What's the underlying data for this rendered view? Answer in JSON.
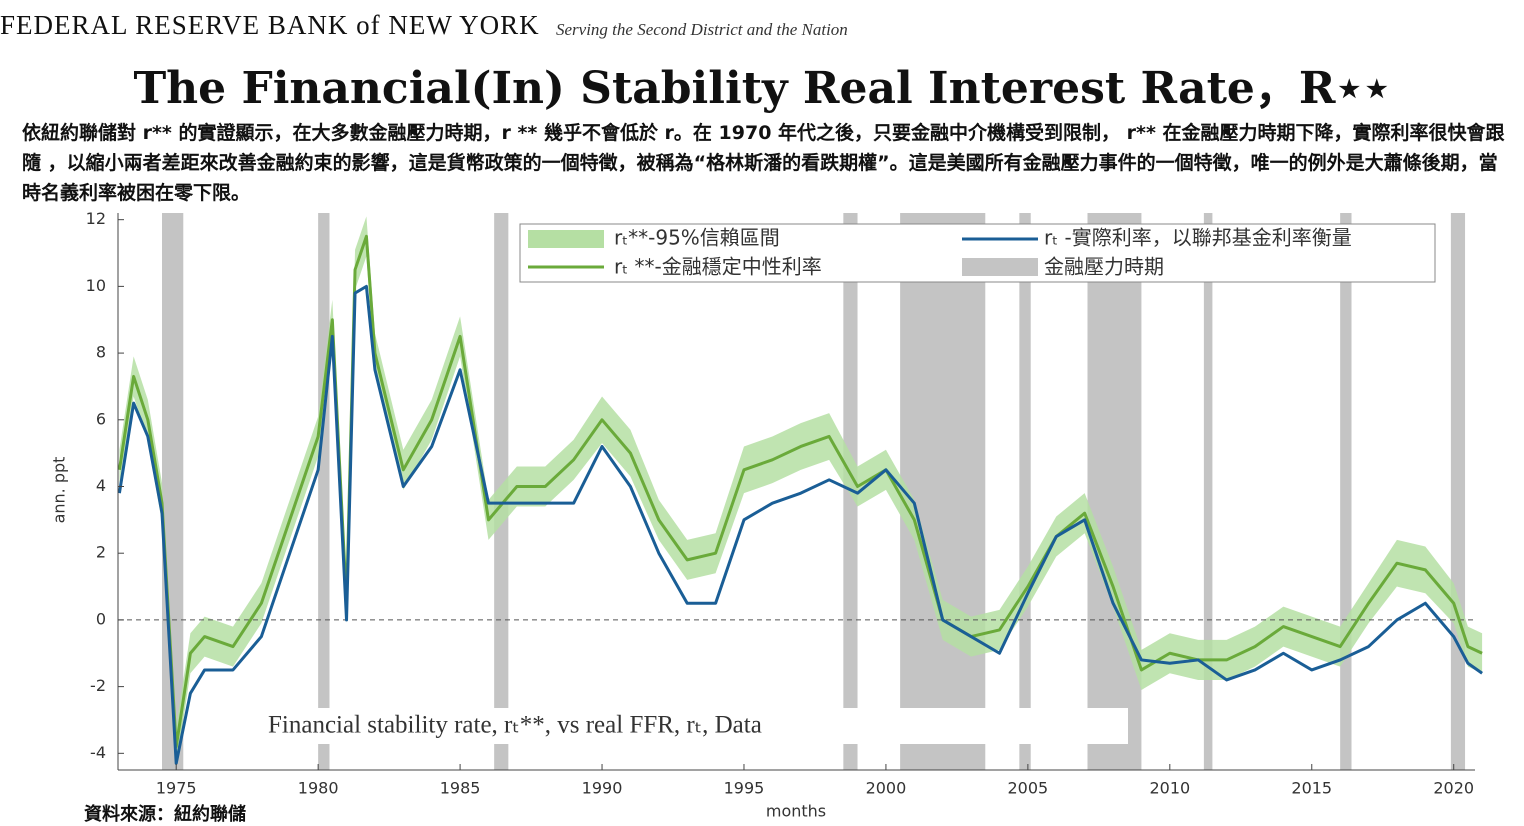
{
  "header": {
    "org": "FEDERAL RESERVE BANK of NEW YORK",
    "tagline": "Serving the Second District and the Nation",
    "title": "The Financial(In) Stability Real Interest Rate，R⋆⋆",
    "description": "依紐約聯儲對 r** 的實證顯示，在大多數金融壓力時期，r ** 幾乎不會低於 r。在 1970 年代之後，只要金融中介機構受到限制， r** 在金融壓力時期下降，實際利率很快會跟隨 ，以縮小兩者差距來改善金融約束的影響，這是貨幣政策的一個特徵，被稱為“格林斯潘的看跌期權”。這是美國所有金融壓力事件的一個特徵，唯一的例外是大蕭條後期，當時名義利率被困在零下限。"
  },
  "footer": {
    "source": "資料來源：紐約聯儲"
  },
  "chart_data": {
    "type": "line",
    "annotation": "Financial stability rate, rₜ**, vs real FFR, rₜ, Data",
    "y_label": "ann. ppt",
    "x_label": "months",
    "x": [
      1973,
      1973.5,
      1974,
      1974.5,
      1975,
      1975.5,
      1976,
      1977,
      1978,
      1979,
      1980,
      1980.5,
      1981,
      1981.3,
      1981.7,
      1982,
      1983,
      1984,
      1985,
      1986,
      1987,
      1988,
      1989,
      1990,
      1991,
      1992,
      1993,
      1994,
      1995,
      1996,
      1997,
      1998,
      1999,
      2000,
      2001,
      2002,
      2003,
      2004,
      2005,
      2006,
      2007,
      2008,
      2009,
      2010,
      2011,
      2012,
      2013,
      2014,
      2015,
      2016,
      2017,
      2018,
      2019,
      2020,
      2020.5,
      2021
    ],
    "band": {
      "name": "rₜ**-95%信賴區間",
      "color": "#b5dfa3",
      "lower": [
        3.9,
        6.7,
        5.4,
        2.9,
        -4.4,
        -1.6,
        -1.1,
        -1.4,
        -0.1,
        2.4,
        4.9,
        8.4,
        -0.1,
        9.9,
        10.9,
        7.4,
        3.9,
        5.4,
        7.9,
        2.4,
        3.4,
        3.4,
        4.2,
        5.3,
        4.3,
        2.4,
        1.2,
        1.4,
        3.8,
        4.1,
        4.5,
        4.8,
        3.4,
        3.9,
        2.4,
        -0.6,
        -1.1,
        -0.9,
        0.4,
        1.9,
        2.6,
        0.4,
        -2.1,
        -1.6,
        -1.8,
        -1.8,
        -1.4,
        -0.8,
        -1.1,
        -1.4,
        -0.1,
        1.0,
        0.8,
        -0.1,
        -1.4,
        -1.6
      ],
      "upper": [
        5.1,
        7.9,
        6.6,
        4.1,
        -3.2,
        -0.4,
        0.1,
        -0.2,
        1.1,
        3.6,
        6.1,
        9.6,
        1.1,
        11.1,
        12.1,
        8.6,
        5.1,
        6.6,
        9.1,
        3.6,
        4.6,
        4.6,
        5.4,
        6.7,
        5.7,
        3.6,
        2.4,
        2.6,
        5.2,
        5.5,
        5.9,
        6.2,
        4.6,
        5.1,
        3.6,
        0.6,
        0.1,
        0.3,
        1.6,
        3.1,
        3.8,
        1.6,
        -0.9,
        -0.4,
        -0.6,
        -0.6,
        -0.2,
        0.4,
        0.1,
        -0.2,
        1.1,
        2.4,
        2.2,
        1.1,
        -0.2,
        -0.4
      ]
    },
    "series": [
      {
        "name": "rₜ **-金融穩定中性利率",
        "color": "#6aaa3a",
        "values": [
          4.5,
          7.3,
          6.0,
          3.5,
          -3.8,
          -1.0,
          -0.5,
          -0.8,
          0.5,
          3.0,
          5.5,
          9.0,
          0.5,
          10.5,
          11.5,
          8.0,
          4.5,
          6.0,
          8.5,
          3.0,
          4.0,
          4.0,
          4.8,
          6.0,
          5.0,
          3.0,
          1.8,
          2.0,
          4.5,
          4.8,
          5.2,
          5.5,
          4.0,
          4.5,
          3.0,
          0.0,
          -0.5,
          -0.3,
          1.0,
          2.5,
          3.2,
          1.0,
          -1.5,
          -1.0,
          -1.2,
          -1.2,
          -0.8,
          -0.2,
          -0.5,
          -0.8,
          0.5,
          1.7,
          1.5,
          0.5,
          -0.8,
          -1.0
        ]
      },
      {
        "name": "rₜ -實際利率，以聯邦基金利率衡量",
        "color": "#1a5e96",
        "values": [
          3.8,
          6.5,
          5.5,
          3.2,
          -4.3,
          -2.2,
          -1.5,
          -1.5,
          -0.5,
          2.0,
          4.5,
          8.5,
          0.0,
          9.8,
          10.0,
          7.5,
          4.0,
          5.2,
          7.5,
          3.5,
          3.5,
          3.5,
          3.5,
          5.2,
          4.0,
          2.0,
          0.5,
          0.5,
          3.0,
          3.5,
          3.8,
          4.2,
          3.8,
          4.5,
          3.5,
          0.0,
          -0.5,
          -1.0,
          0.8,
          2.5,
          3.0,
          0.5,
          -1.2,
          -1.3,
          -1.2,
          -1.8,
          -1.5,
          -1.0,
          -1.5,
          -1.2,
          -0.8,
          0.0,
          0.5,
          -0.5,
          -1.3,
          -1.6
        ]
      }
    ],
    "shaded": {
      "name": "金融壓力時期",
      "color": "#c4c4c4",
      "periods": [
        [
          1974.5,
          1975.25
        ],
        [
          1980.0,
          1980.4
        ],
        [
          1986.2,
          1986.7
        ],
        [
          1998.5,
          1999.0
        ],
        [
          2000.5,
          2003.5
        ],
        [
          2004.7,
          2005.1
        ],
        [
          2007.1,
          2009.0
        ],
        [
          2011.2,
          2011.5
        ],
        [
          2016.0,
          2016.4
        ],
        [
          2019.9,
          2020.4
        ]
      ]
    },
    "reference_line": 0,
    "xlim": [
      1972.95,
      2020.75
    ],
    "ylim": [
      -4.5,
      12.2
    ],
    "xticks": [
      1975,
      1980,
      1985,
      1990,
      1995,
      2000,
      2005,
      2010,
      2015,
      2020
    ],
    "yticks": [
      -4,
      -2,
      0,
      2,
      4,
      6,
      8,
      10,
      12
    ]
  }
}
